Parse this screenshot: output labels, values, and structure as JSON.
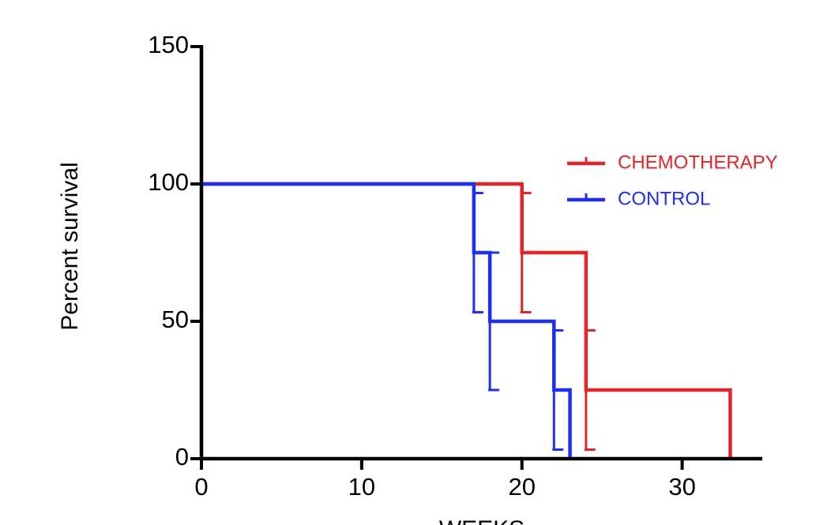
{
  "chart_data": {
    "type": "survival",
    "xlabel": "WEEKS",
    "ylabel": "Percent survival",
    "xlim": [
      0,
      35
    ],
    "ylim": [
      0,
      150
    ],
    "xticks": [
      0,
      10,
      20,
      30
    ],
    "yticks": [
      0,
      50,
      100,
      150
    ],
    "legend": "upper right",
    "series": [
      {
        "name": "CHEMOTHERAPY",
        "color": "#e0262a",
        "x": [
          0,
          20,
          24,
          33
        ],
        "values": [
          100,
          75,
          25,
          0
        ],
        "errors": [
          null,
          21.7,
          21.7,
          null
        ]
      },
      {
        "name": "CONTROL",
        "color": "#1f2ff0",
        "x": [
          0,
          17,
          18,
          22,
          23
        ],
        "values": [
          100,
          75,
          50,
          25,
          0
        ],
        "errors": [
          null,
          21.7,
          25,
          21.7,
          null
        ]
      }
    ]
  }
}
